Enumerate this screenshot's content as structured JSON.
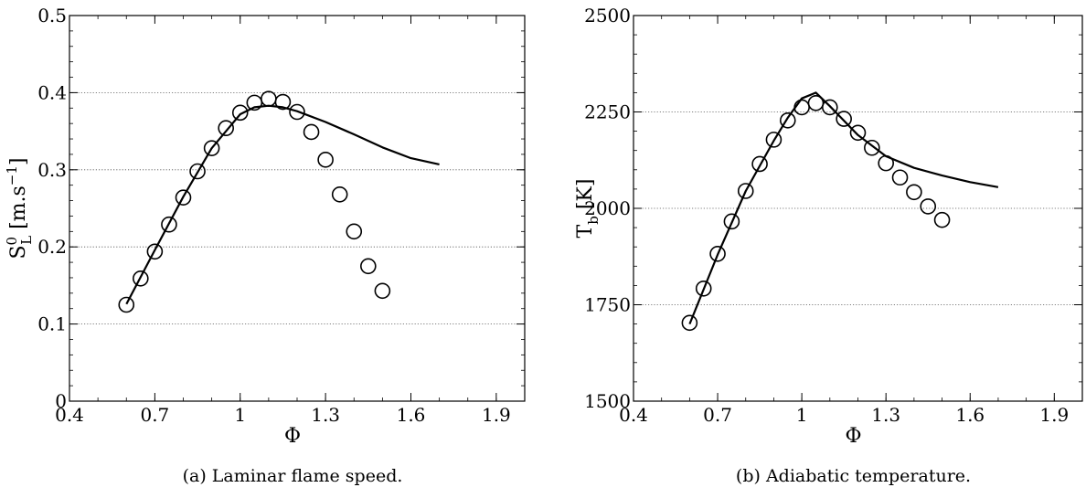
{
  "chart_data": [
    {
      "type": "line",
      "caption": "(a) Laminar flame speed.",
      "xlabel": "Φ",
      "ylabel": {
        "main": "S",
        "sup": "0",
        "sub": "L",
        "unit": " [m.s",
        "unit_sup": "−1",
        "unit_close": "]"
      },
      "xlim": [
        0.4,
        2.0
      ],
      "ylim": [
        0,
        0.5
      ],
      "xticks": [
        0.4,
        0.7,
        1.0,
        1.3,
        1.6,
        1.9
      ],
      "xtick_labels": [
        "0.4",
        "0.7",
        "1",
        "1.3",
        "1.6",
        "1.9"
      ],
      "yticks": [
        0,
        0.1,
        0.2,
        0.3,
        0.4,
        0.5
      ],
      "ytick_labels": [
        "0",
        "0.1",
        "0.2",
        "0.3",
        "0.4",
        "0.5"
      ],
      "grid": "horizontal dotted",
      "series": [
        {
          "style": "line",
          "x": [
            0.6,
            0.7,
            0.8,
            0.9,
            1.0,
            1.05,
            1.1,
            1.15,
            1.2,
            1.3,
            1.4,
            1.5,
            1.6,
            1.7
          ],
          "y": [
            0.126,
            0.196,
            0.265,
            0.328,
            0.372,
            0.381,
            0.383,
            0.381,
            0.376,
            0.362,
            0.346,
            0.329,
            0.315,
            0.307
          ]
        },
        {
          "style": "circle",
          "x": [
            0.6,
            0.65,
            0.7,
            0.75,
            0.8,
            0.85,
            0.9,
            0.95,
            1.0,
            1.05,
            1.1,
            1.15,
            1.2,
            1.25,
            1.3,
            1.35,
            1.4,
            1.45,
            1.5
          ],
          "y": [
            0.125,
            0.159,
            0.194,
            0.229,
            0.264,
            0.298,
            0.328,
            0.354,
            0.374,
            0.387,
            0.392,
            0.388,
            0.375,
            0.349,
            0.313,
            0.268,
            0.22,
            0.175,
            0.143
          ]
        }
      ]
    },
    {
      "type": "line",
      "caption": "(b) Adiabatic temperature.",
      "xlabel": "Φ",
      "ylabel": {
        "main": "T",
        "sub": "b",
        "unit": " [K]"
      },
      "xlim": [
        0.4,
        2.0
      ],
      "ylim": [
        1500,
        2500
      ],
      "xticks": [
        0.4,
        0.7,
        1.0,
        1.3,
        1.6,
        1.9
      ],
      "xtick_labels": [
        "0.4",
        "0.7",
        "1",
        "1.3",
        "1.6",
        "1.9"
      ],
      "yticks": [
        1500,
        1750,
        2000,
        2250,
        2500
      ],
      "ytick_labels": [
        "1500",
        "1750",
        "2000",
        "2250",
        "2500"
      ],
      "grid": "horizontal dotted",
      "series": [
        {
          "style": "line",
          "x": [
            0.6,
            0.7,
            0.8,
            0.9,
            0.95,
            1.0,
            1.05,
            1.1,
            1.2,
            1.3,
            1.4,
            1.5,
            1.6,
            1.7
          ],
          "y": [
            1700,
            1880,
            2045,
            2175,
            2235,
            2285,
            2300,
            2265,
            2190,
            2135,
            2105,
            2085,
            2068,
            2055
          ]
        },
        {
          "style": "circle",
          "x": [
            0.6,
            0.65,
            0.7,
            0.75,
            0.8,
            0.85,
            0.9,
            0.95,
            1.0,
            1.05,
            1.1,
            1.15,
            1.2,
            1.25,
            1.3,
            1.35,
            1.4,
            1.45,
            1.5
          ],
          "y": [
            1703,
            1792,
            1882,
            1966,
            2045,
            2115,
            2178,
            2228,
            2262,
            2273,
            2262,
            2232,
            2196,
            2157,
            2117,
            2080,
            2042,
            2005,
            1970
          ]
        }
      ]
    }
  ]
}
